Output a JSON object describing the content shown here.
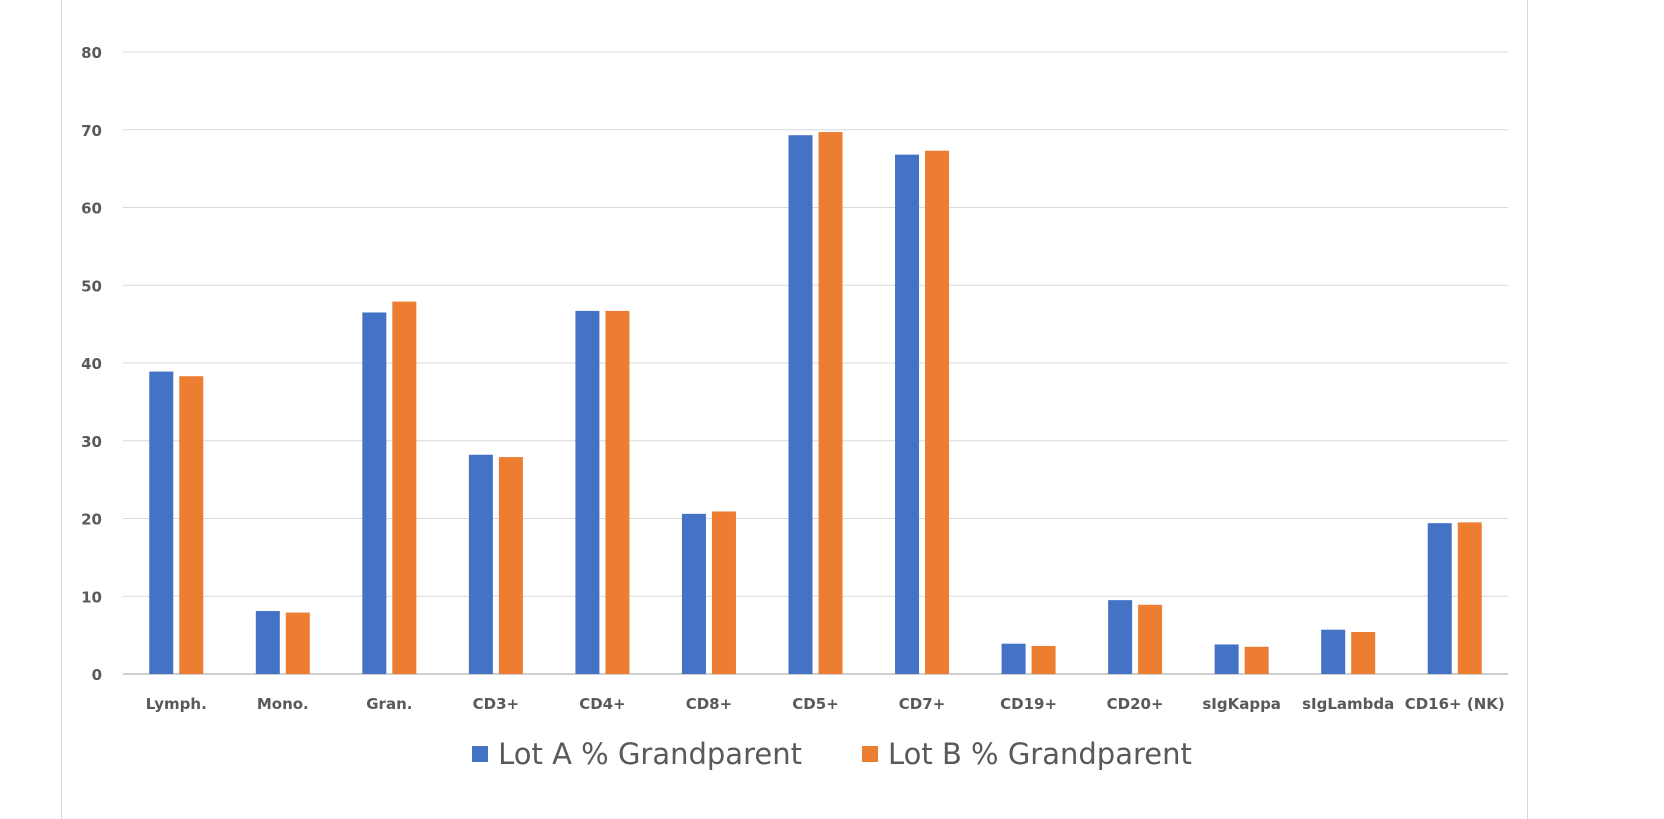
{
  "chart_data": {
    "type": "bar",
    "categories": [
      "Lymph.",
      "Mono.",
      "Gran.",
      "CD3+",
      "CD4+",
      "CD8+",
      "CD5+",
      "CD7+",
      "CD19+",
      "CD20+",
      "sIgKappa",
      "sIgLambda",
      "CD16+ (NK)"
    ],
    "series": [
      {
        "name": "Lot A % Grandparent",
        "color": "#4472C4",
        "values": [
          38.9,
          8.1,
          46.5,
          28.2,
          46.7,
          20.6,
          69.3,
          66.8,
          3.9,
          9.5,
          3.8,
          5.7,
          19.4
        ]
      },
      {
        "name": "Lot B % Grandparent",
        "color": "#ED7D31",
        "values": [
          38.3,
          7.9,
          47.9,
          27.9,
          46.7,
          20.9,
          69.7,
          67.3,
          3.6,
          8.9,
          3.5,
          5.4,
          19.5
        ]
      }
    ],
    "ylim": [
      0,
      80
    ],
    "yticks": [
      "0",
      "10",
      "20",
      "30",
      "40",
      "50",
      "60",
      "70",
      "80"
    ],
    "grid": true,
    "legend_position": "bottom",
    "title": "",
    "xlabel": "",
    "ylabel": ""
  }
}
